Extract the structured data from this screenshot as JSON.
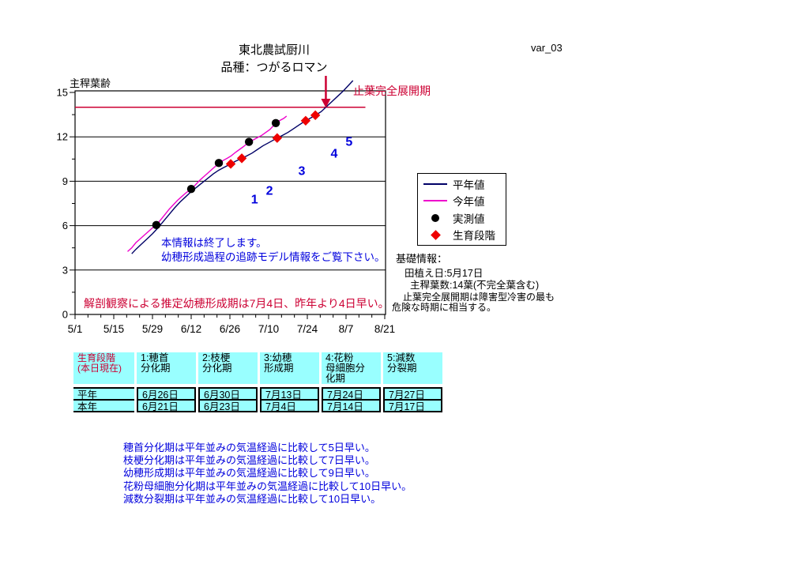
{
  "header": {
    "title_line1": "東北農試厨川",
    "title_line2": "品種：つがるロマン",
    "variant": "var_03"
  },
  "colors": {
    "navy": "#000066",
    "magenta": "#EE00CC",
    "red": "#EE0000",
    "crimson": "#CC0033",
    "blue": "#0000DD",
    "cyan": "#99FFFF"
  },
  "chart_data": {
    "type": "line",
    "title": "東北農試厨川 品種：つがるロマン",
    "ylabel": "主稈葉齢",
    "ylim": [
      0,
      15
    ],
    "xlim_days": [
      0,
      112
    ],
    "grid": true,
    "legend_position": "right-outside",
    "x_ticks": [
      {
        "label": "5/1",
        "day": 0
      },
      {
        "label": "5/15",
        "day": 14
      },
      {
        "label": "5/29",
        "day": 28
      },
      {
        "label": "6/12",
        "day": 42
      },
      {
        "label": "6/26",
        "day": 56
      },
      {
        "label": "7/10",
        "day": 70
      },
      {
        "label": "7/24",
        "day": 84
      },
      {
        "label": "8/7",
        "day": 98
      },
      {
        "label": "8/21",
        "day": 112
      }
    ],
    "y_major_ticks": [
      0,
      3,
      6,
      9,
      12,
      15
    ],
    "y_minor_ticks": [
      1.5,
      4.5,
      7.5,
      10.5,
      13.5
    ],
    "y_gridlines": [
      3,
      6,
      9,
      12
    ],
    "series": [
      {
        "name": "平年値",
        "type": "line",
        "color": "#000066",
        "points": [
          [
            20.5,
            4.1
          ],
          [
            22,
            4.4
          ],
          [
            24,
            4.75
          ],
          [
            26,
            5.1
          ],
          [
            28,
            5.45
          ],
          [
            30,
            5.85
          ],
          [
            32,
            6.3
          ],
          [
            34,
            6.75
          ],
          [
            36,
            7.2
          ],
          [
            38,
            7.6
          ],
          [
            40,
            7.95
          ],
          [
            42,
            8.3
          ],
          [
            44,
            8.6
          ],
          [
            46,
            8.9
          ],
          [
            48,
            9.2
          ],
          [
            50,
            9.5
          ],
          [
            52,
            9.75
          ],
          [
            54,
            9.95
          ],
          [
            56.3,
            10.17
          ],
          [
            58,
            10.35
          ],
          [
            60.3,
            10.55
          ],
          [
            62,
            10.7
          ],
          [
            64,
            10.9
          ],
          [
            66,
            11.15
          ],
          [
            68,
            11.4
          ],
          [
            70,
            11.6
          ],
          [
            73.1,
            11.92
          ],
          [
            75,
            12.1
          ],
          [
            77,
            12.3
          ],
          [
            79,
            12.55
          ],
          [
            81,
            12.8
          ],
          [
            83.4,
            13.09
          ],
          [
            85,
            13.25
          ],
          [
            86.9,
            13.46
          ],
          [
            89,
            13.7
          ],
          [
            91,
            14.05
          ],
          [
            93,
            14.4
          ],
          [
            95,
            14.75
          ],
          [
            97,
            15.1
          ],
          [
            99,
            15.5
          ],
          [
            100.5,
            15.8
          ]
        ]
      },
      {
        "name": "今年値",
        "type": "line",
        "color": "#EE00CC",
        "points": [
          [
            19,
            4.25
          ],
          [
            20.5,
            4.5
          ],
          [
            22,
            4.85
          ],
          [
            23.5,
            5.1
          ],
          [
            25,
            5.35
          ],
          [
            26.5,
            5.6
          ],
          [
            28,
            5.85
          ],
          [
            29.4,
            6.04
          ],
          [
            31,
            6.4
          ],
          [
            32.5,
            6.75
          ],
          [
            34,
            7.1
          ],
          [
            35.5,
            7.4
          ],
          [
            37,
            7.7
          ],
          [
            38.5,
            7.95
          ],
          [
            40,
            8.2
          ],
          [
            42,
            8.48
          ],
          [
            43.5,
            8.75
          ],
          [
            45,
            9.05
          ],
          [
            46.5,
            9.3
          ],
          [
            48,
            9.55
          ],
          [
            49.5,
            9.8
          ],
          [
            51,
            10.05
          ],
          [
            52,
            10.23
          ],
          [
            53.5,
            10.4
          ],
          [
            55,
            10.55
          ],
          [
            56.5,
            10.72
          ],
          [
            58,
            10.95
          ],
          [
            59.5,
            11.15
          ],
          [
            61,
            11.35
          ],
          [
            62.9,
            11.66
          ],
          [
            64.5,
            11.8
          ],
          [
            66,
            11.95
          ],
          [
            67.5,
            12.1
          ],
          [
            69,
            12.3
          ],
          [
            70.5,
            12.5
          ],
          [
            72.6,
            12.93
          ],
          [
            74,
            13.1
          ],
          [
            75.5,
            13.25
          ],
          [
            76.5,
            13.4
          ]
        ]
      },
      {
        "name": "実測値",
        "type": "scatter",
        "marker": "circle",
        "color": "#000000",
        "points": [
          [
            29.4,
            6.04
          ],
          [
            42,
            8.48
          ],
          [
            52,
            10.23
          ],
          [
            62.9,
            11.66
          ],
          [
            72.6,
            12.93
          ]
        ]
      },
      {
        "name": "生育段階",
        "type": "scatter",
        "marker": "diamond",
        "color": "#EE0000",
        "points": [
          [
            56.3,
            10.17
          ],
          [
            60.3,
            10.55
          ],
          [
            73.1,
            11.92
          ],
          [
            83.4,
            13.09
          ],
          [
            86.9,
            13.46
          ]
        ]
      }
    ],
    "reference_line": {
      "value": 14,
      "label": "止葉完全展開期",
      "color": "#CC0033",
      "day_start": 0,
      "day_end": 105
    },
    "arrow_marker": {
      "day": 90.7,
      "color": "#CC0033"
    },
    "stage_point_labels": [
      {
        "label": "1",
        "day": 64.9,
        "value": 7.5
      },
      {
        "label": "2",
        "day": 70.3,
        "value": 8.1
      },
      {
        "label": "3",
        "day": 82,
        "value": 9.43
      },
      {
        "label": "4",
        "day": 93.7,
        "value": 10.6
      },
      {
        "label": "5",
        "day": 99.1,
        "value": 11.4
      }
    ]
  },
  "legend": {
    "items": [
      {
        "label": "平年値",
        "marker": "line",
        "color": "#000066"
      },
      {
        "label": "今年値",
        "marker": "line",
        "color": "#EE00CC"
      },
      {
        "label": "実測値",
        "marker": "circle",
        "color": "#000000"
      },
      {
        "label": "生育段階",
        "marker": "diamond",
        "color": "#EE0000"
      }
    ]
  },
  "annotations": {
    "flag_leaf_label": "止葉完全展開期",
    "info_end_line1": "本情報は終了します。",
    "info_end_line2": "幼穂形成過程の追跡モデル情報をご覧下さい。",
    "anatomical_note": "解剖観察による推定幼穂形成期は7月4日、昨年より4日早い。"
  },
  "basic_info": {
    "heading": "基礎情報：",
    "planting": "田植え日:5月17日",
    "leaves": "主稈葉数:14葉(不完全葉含む)",
    "warning1": "止葉完全展開期は障害型冷害の最も",
    "warning2": "危険な時期に相当する。"
  },
  "stage_table": {
    "corner": "生育段階\n(本日現在)",
    "columns": [
      "1:穂首\n分化期",
      "2:枝梗\n分化期",
      "3:幼穂\n形成期",
      "4:花粉\n母細胞分\n化期",
      "5:減数\n分裂期"
    ],
    "rows": [
      {
        "label": "平年",
        "values": [
          "6月26日",
          "6月30日",
          "7月13日",
          "7月24日",
          "7月27日"
        ]
      },
      {
        "label": "本年",
        "values": [
          "6月21日",
          "6月23日",
          "7月4日",
          "7月14日",
          "7月17日"
        ]
      }
    ]
  },
  "footnotes": [
    "穂首分化期は平年並みの気温経過に比較して5日早い。",
    "枝梗分化期は平年並みの気温経過に比較して7日早い。",
    "幼穂形成期は平年並みの気温経過に比較して9日早い。",
    "花粉母細胞分化期は平年並みの気温経過に比較して10日早い。",
    "減数分裂期は平年並みの気温経過に比較して10日早い。"
  ]
}
